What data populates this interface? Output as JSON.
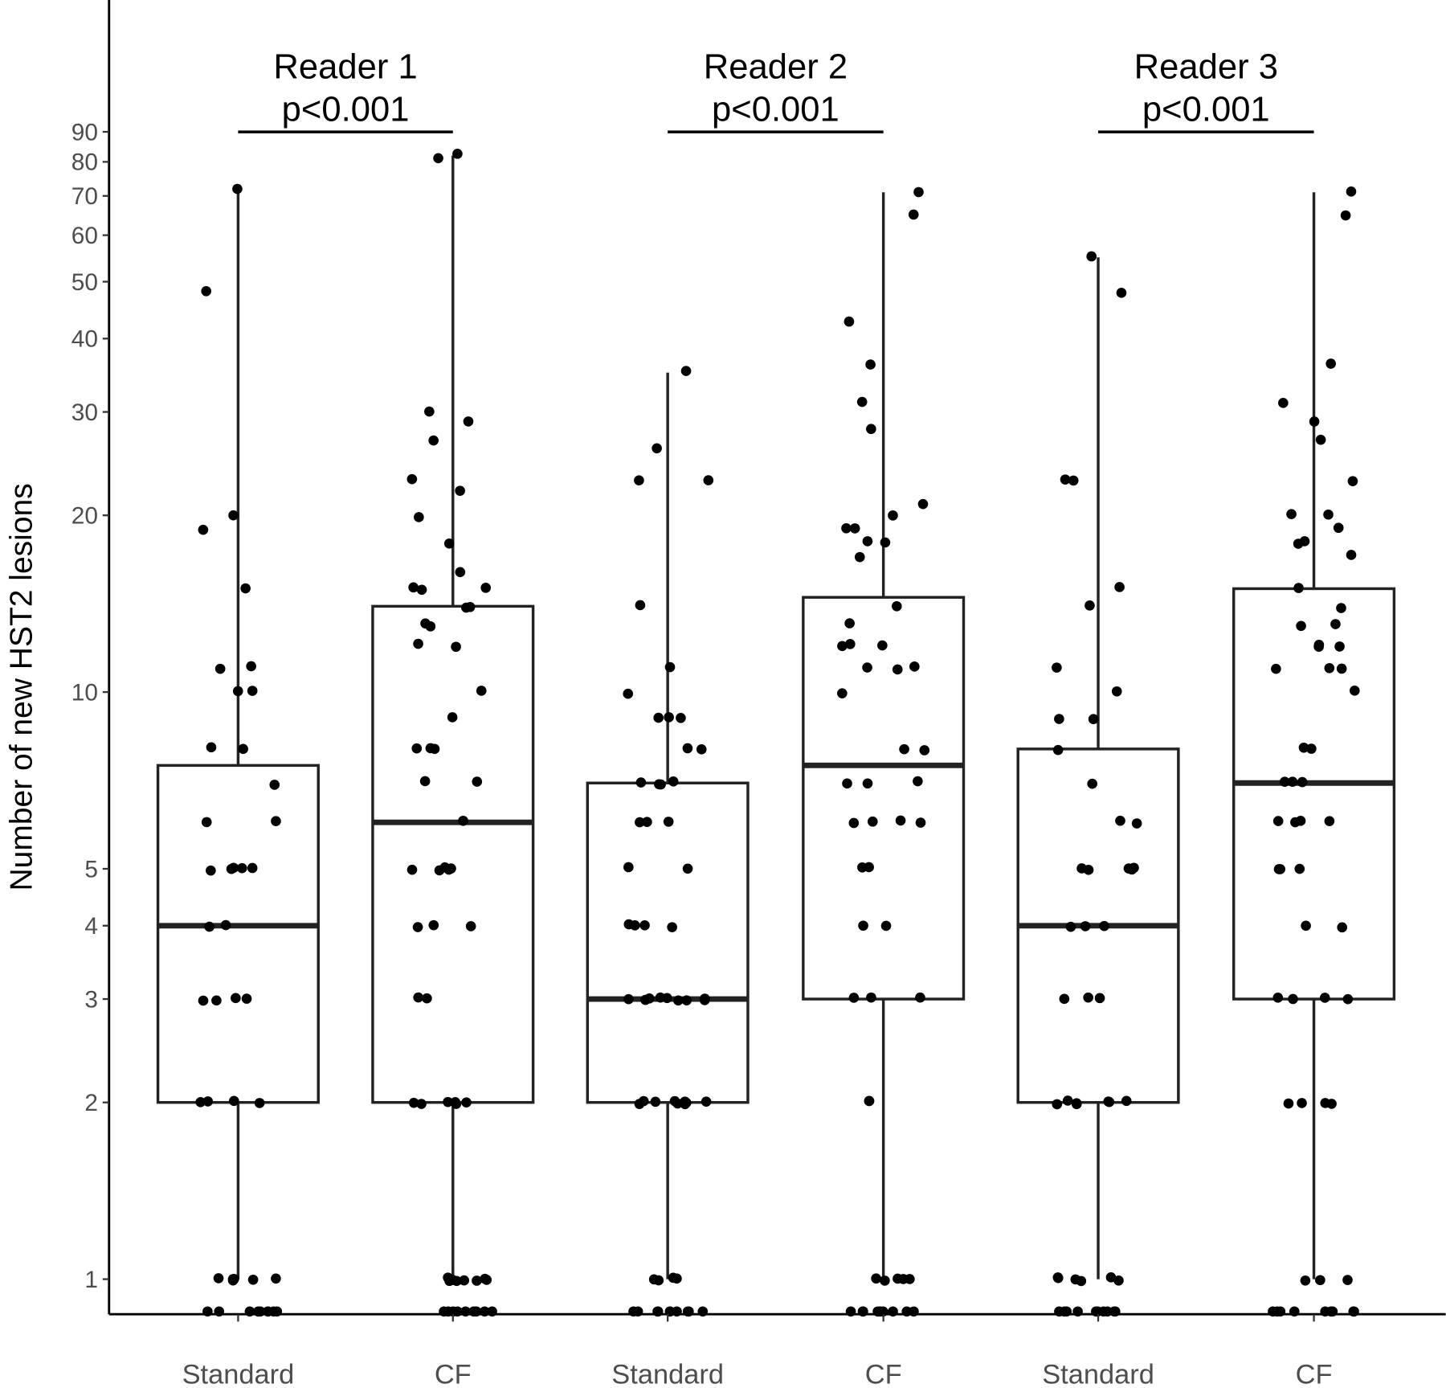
{
  "chart_data": {
    "type": "box",
    "ylabel": "Number of new HST2 lesions",
    "yscale": "log",
    "yticks": [
      1,
      2,
      3,
      4,
      5,
      10,
      20,
      30,
      40,
      50,
      60,
      70,
      80,
      90
    ],
    "categories": [
      "Standard",
      "CF",
      "Standard",
      "CF",
      "Standard",
      "CF"
    ],
    "comparisons": [
      {
        "title": "Reader 1",
        "p": "p<0.001",
        "groups": [
          0,
          1
        ]
      },
      {
        "title": "Reader 2",
        "p": "p<0.001",
        "groups": [
          2,
          3
        ]
      },
      {
        "title": "Reader 3",
        "p": "p<0.001",
        "groups": [
          4,
          5
        ]
      }
    ],
    "boxes": [
      {
        "q1": 2,
        "median": 4,
        "q3": 7.5,
        "whisker_low": 1,
        "whisker_high": 72
      },
      {
        "q1": 2,
        "median": 6,
        "q3": 14,
        "whisker_low": 1,
        "whisker_high": 82
      },
      {
        "q1": 2,
        "median": 3,
        "q3": 7,
        "whisker_low": 1,
        "whisker_high": 35
      },
      {
        "q1": 3,
        "median": 7.5,
        "q3": 14.5,
        "whisker_low": 1,
        "whisker_high": 71
      },
      {
        "q1": 2,
        "median": 4,
        "q3": 8,
        "whisker_low": 1,
        "whisker_high": 55
      },
      {
        "q1": 3,
        "median": 7,
        "q3": 15,
        "whisker_low": 1,
        "whisker_high": 71
      }
    ],
    "points": [
      [
        72,
        48,
        20,
        19,
        15,
        11,
        11,
        10,
        10,
        8,
        8,
        7,
        6,
        6,
        5,
        5,
        5,
        5,
        5,
        4,
        4,
        3,
        3,
        3,
        3,
        2,
        2,
        2,
        2,
        1,
        1,
        1,
        1,
        1,
        1,
        0,
        0,
        0,
        0,
        0,
        0,
        0,
        0,
        0,
        0
      ],
      [
        82,
        81,
        30,
        29,
        27,
        23,
        22,
        20,
        18,
        16,
        15,
        15,
        15,
        14,
        14,
        13,
        13,
        12,
        12,
        10,
        9,
        8,
        8,
        8,
        7,
        7,
        6,
        5,
        5,
        5,
        5,
        5,
        4,
        4,
        4,
        3,
        3,
        2,
        2,
        2,
        2,
        2,
        2,
        1,
        1,
        1,
        1,
        1,
        1,
        1,
        1,
        0,
        0,
        0,
        0,
        0,
        0,
        0,
        0,
        0
      ],
      [
        35,
        26,
        23,
        23,
        14,
        11,
        10,
        9,
        9,
        9,
        8,
        8,
        7,
        7,
        7,
        7,
        6,
        6,
        6,
        5,
        5,
        4,
        4,
        4,
        4,
        3,
        3,
        3,
        3,
        3,
        3,
        3,
        3,
        3,
        2,
        2,
        2,
        2,
        2,
        2,
        2,
        2,
        2,
        1,
        1,
        1,
        1,
        0,
        0,
        0,
        0,
        0,
        0,
        0,
        0,
        0,
        0
      ],
      [
        71,
        65,
        43,
        36,
        31,
        28,
        21,
        20,
        19,
        19,
        18,
        18,
        17,
        14,
        13,
        12,
        12,
        12,
        11,
        11,
        11,
        10,
        8,
        8,
        7,
        7,
        7,
        6,
        6,
        6,
        6,
        5,
        5,
        4,
        4,
        3,
        3,
        3,
        2,
        2,
        1,
        1,
        1,
        1,
        1,
        0,
        0,
        0,
        0,
        0,
        0,
        0,
        0,
        0
      ],
      [
        55,
        48,
        23,
        23,
        15,
        14,
        11,
        10,
        9,
        9,
        8,
        7,
        6,
        6,
        5,
        5,
        5,
        5,
        5,
        4,
        4,
        4,
        3,
        3,
        3,
        2,
        2,
        2,
        2,
        2,
        2,
        2,
        1,
        1,
        1,
        1,
        1,
        1,
        0,
        0,
        0,
        0,
        0,
        0,
        0,
        0,
        0,
        0
      ],
      [
        71,
        65,
        36,
        31,
        29,
        27,
        23,
        20,
        20,
        19,
        18,
        18,
        17,
        15,
        14,
        13,
        13,
        12,
        12,
        12,
        11,
        11,
        11,
        10,
        8,
        8,
        7,
        7,
        7,
        6,
        6,
        6,
        6,
        5,
        5,
        5,
        4,
        4,
        3,
        3,
        3,
        3,
        2,
        2,
        2,
        2,
        1,
        1,
        1,
        0,
        0,
        0,
        0,
        0,
        0,
        0,
        0,
        0,
        0
      ]
    ]
  }
}
